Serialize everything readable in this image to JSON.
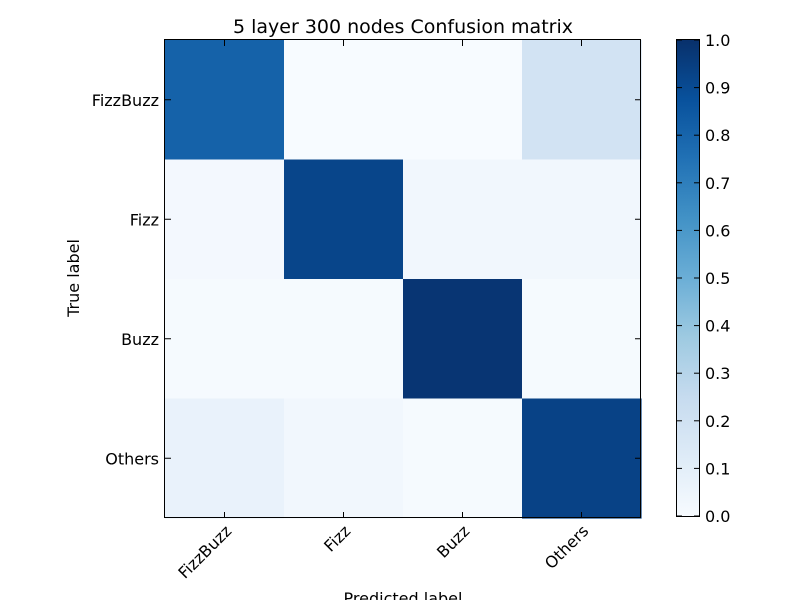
{
  "chart_data": {
    "type": "heatmap",
    "title": "5 layer 300 nodes Confusion matrix",
    "xlabel": "Predicted label",
    "ylabel": "True label",
    "x_categories": [
      "FizzBuzz",
      "Fizz",
      "Buzz",
      "Others"
    ],
    "y_categories": [
      "FizzBuzz",
      "Fizz",
      "Buzz",
      "Others"
    ],
    "values": [
      [
        0.81,
        0.0,
        0.0,
        0.19
      ],
      [
        0.02,
        0.92,
        0.03,
        0.03
      ],
      [
        0.01,
        0.01,
        0.98,
        0.01
      ],
      [
        0.07,
        0.03,
        0.01,
        0.93
      ]
    ],
    "colormap": "Blues",
    "colorbar": {
      "range": [
        0.0,
        1.0
      ],
      "ticks": [
        "0.0",
        "0.1",
        "0.2",
        "0.3",
        "0.4",
        "0.5",
        "0.6",
        "0.7",
        "0.8",
        "0.9",
        "1.0"
      ]
    },
    "grid": false
  }
}
